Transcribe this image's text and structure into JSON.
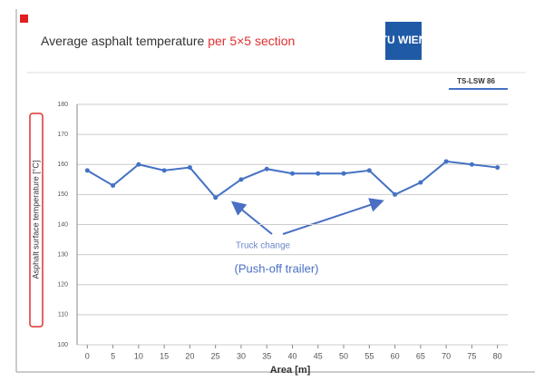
{
  "chart_data": {
    "type": "line",
    "title": "Average asphalt temperature",
    "title_highlight": "per 5×5 section",
    "logo": "TU WIEN",
    "y_label": "Asphalt surface temperature [°C]",
    "x_label": "Area [m]",
    "x": [
      0,
      5,
      10,
      15,
      20,
      25,
      30,
      35,
      40,
      45,
      50,
      55,
      60,
      65,
      70,
      75,
      80
    ],
    "series": [
      {
        "name": "TS-LSW 86",
        "color": "#4472c4",
        "values": [
          158,
          153,
          160,
          158,
          159,
          149,
          155,
          158.5,
          157,
          157,
          157,
          158,
          150,
          154,
          161,
          160,
          159
        ]
      }
    ],
    "xlim": [
      -2,
      82
    ],
    "xticks": [
      0,
      5,
      10,
      15,
      20,
      25,
      30,
      35,
      40,
      45,
      50,
      55,
      60,
      65,
      70,
      75,
      80
    ],
    "ylim": [
      100,
      180
    ],
    "yticks": [
      100,
      110,
      120,
      130,
      140,
      150,
      160,
      170,
      180
    ],
    "grid": true,
    "annotations": [
      "Truck change",
      "(Push-off trailer)"
    ]
  }
}
